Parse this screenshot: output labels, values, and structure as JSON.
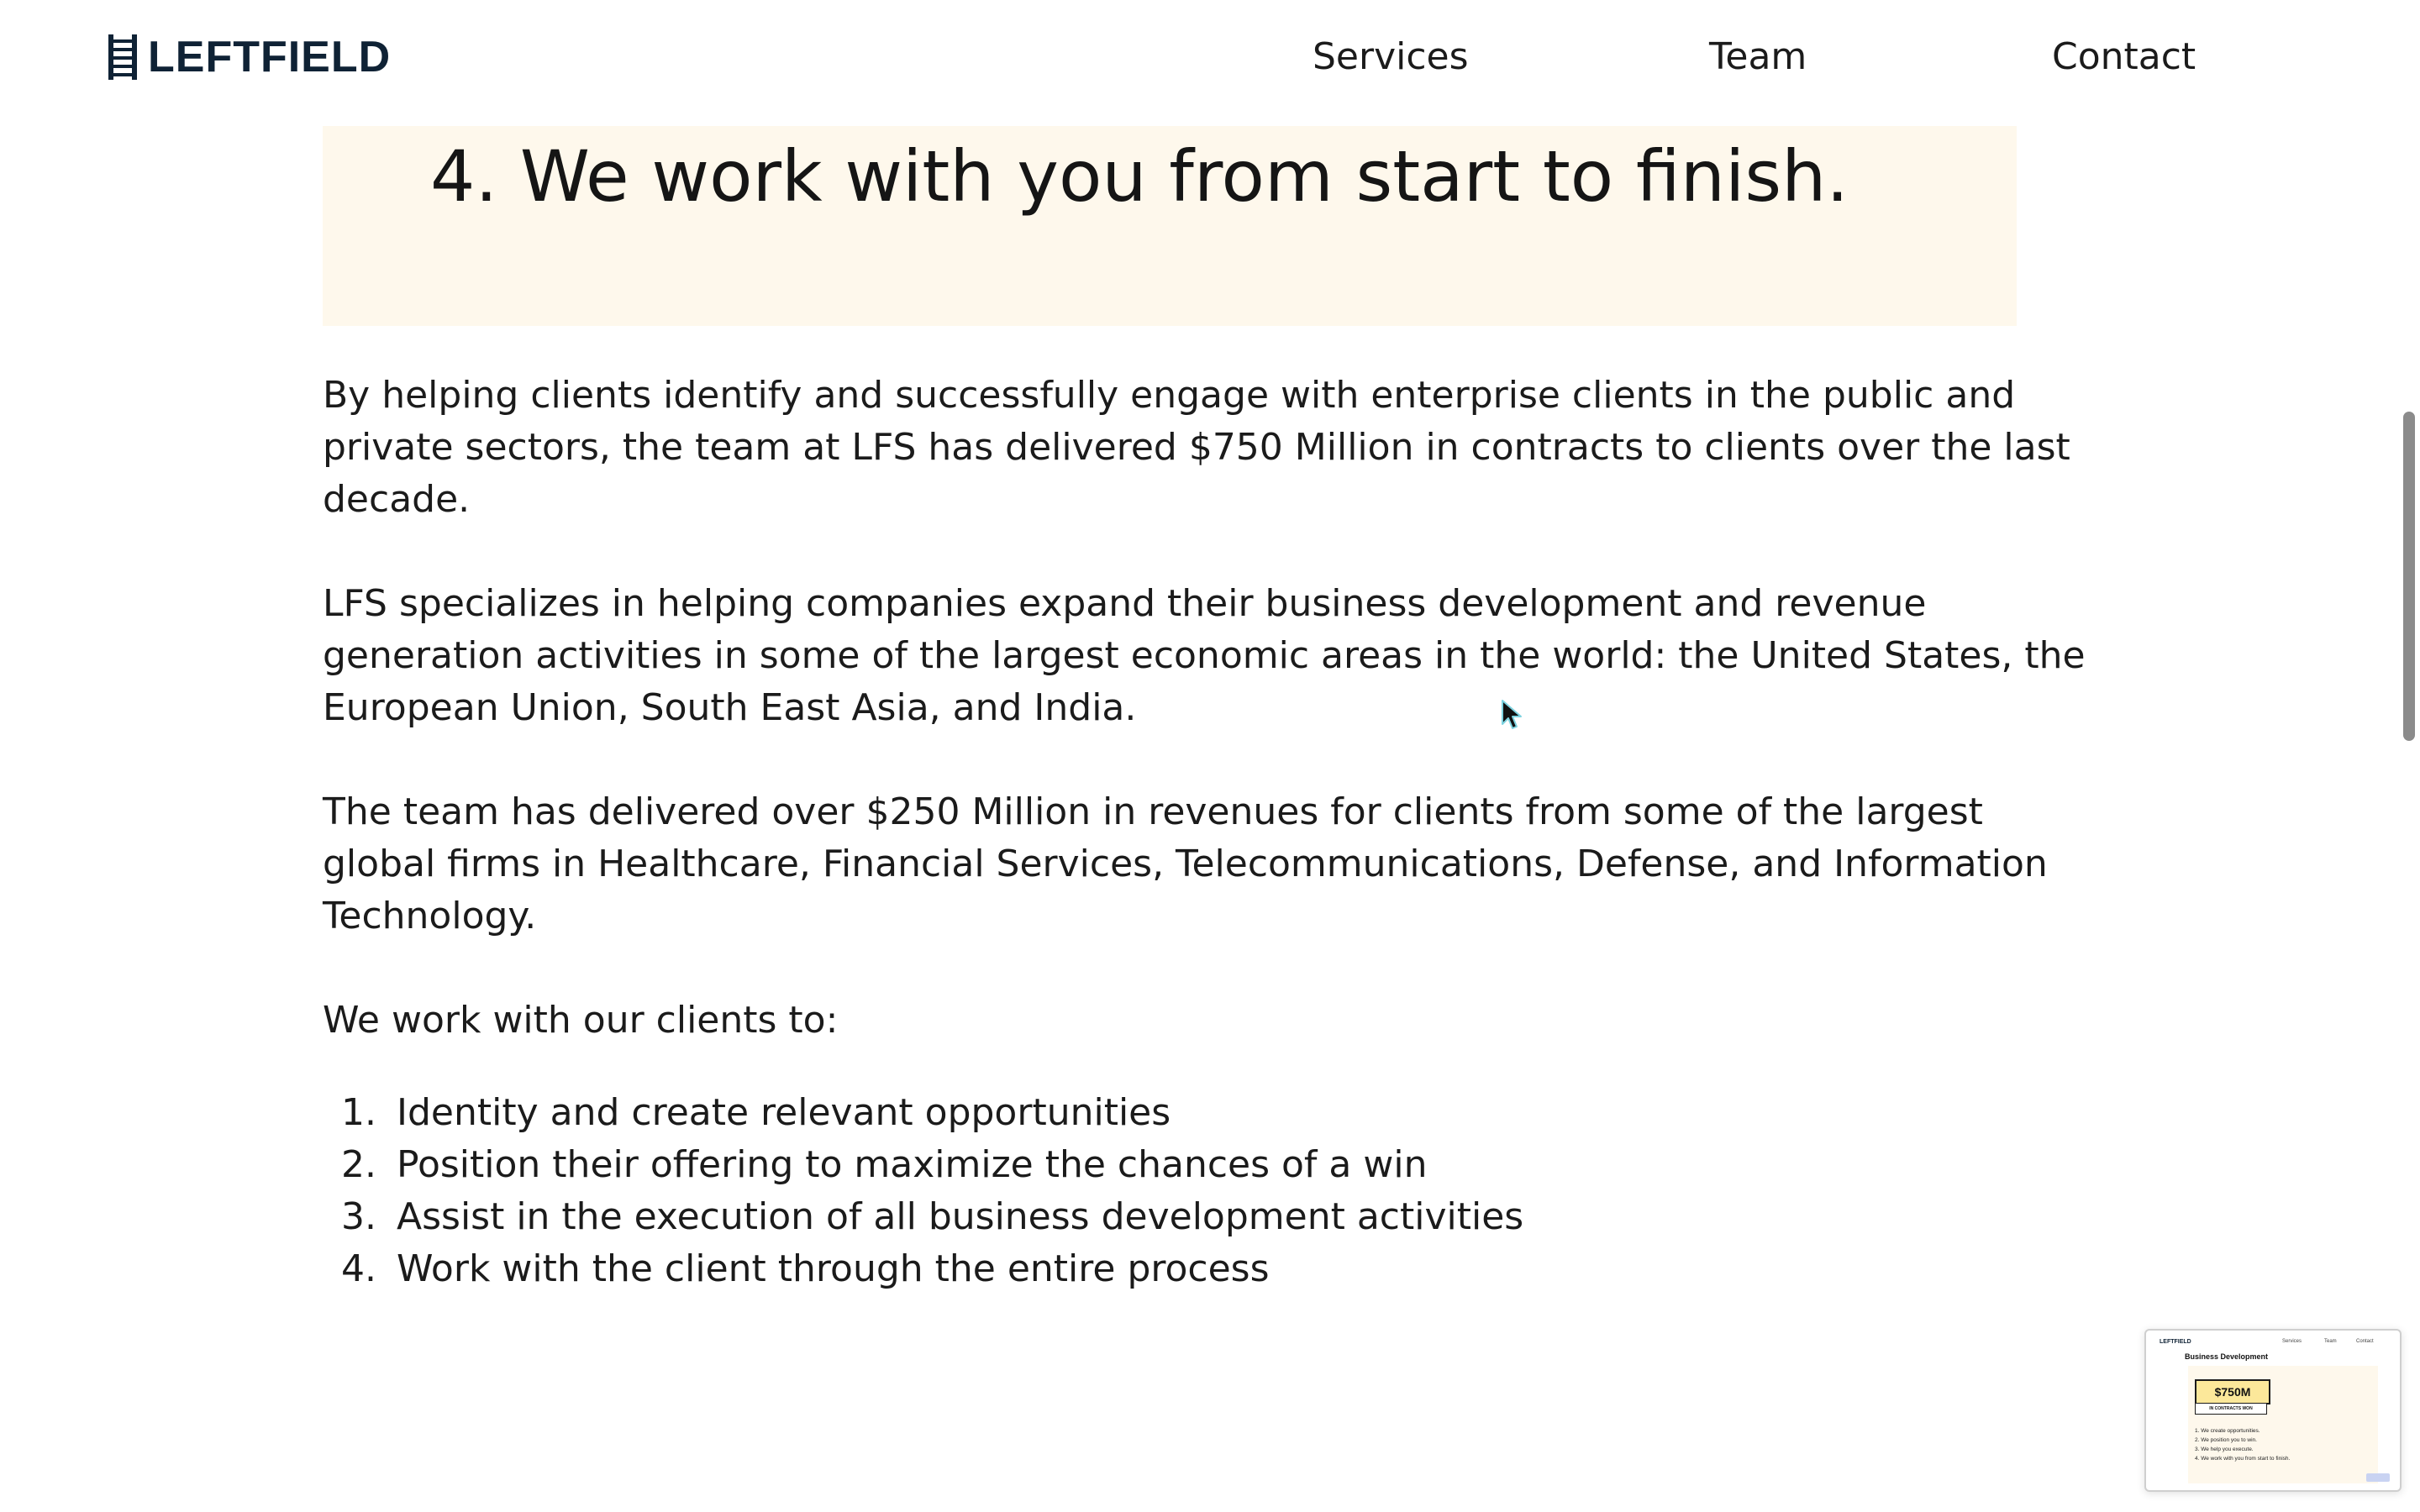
{
  "header": {
    "logo_text": "LEFTFIELD",
    "nav": [
      "Services",
      "Team",
      "Contact"
    ]
  },
  "highlight": {
    "heading": "4. We work with you from start to finish."
  },
  "body": {
    "paragraphs": [
      "By helping clients identify and successfully engage with enterprise clients in the public and private sectors, the team at LFS has delivered $750 Million in contracts to clients over the last decade.",
      "LFS specializes in helping companies expand their business development and revenue generation activities in some of the largest economic areas in the world: the United States, the European Union, South East Asia, and India.",
      "The team has delivered over $250 Million in revenues for clients from some of the largest global firms in Healthcare, Financial Services, Telecommunications, Defense, and Information Technology."
    ],
    "intro": "We work with our clients to:",
    "steps": [
      {
        "num": "1.",
        "text": "Identity and create relevant opportunities"
      },
      {
        "num": "2.",
        "text": "Position their offering to maximize the chances of a win"
      },
      {
        "num": "3.",
        "text": "Assist in the execution of all business development activities"
      },
      {
        "num": "4.",
        "text": "Work with the client through the entire process"
      }
    ]
  },
  "thumbnail": {
    "logo": "LEFTFIELD",
    "nav": [
      "Services",
      "Team",
      "Contact"
    ],
    "title": "Business Development",
    "badge": "$750M",
    "badge_sub": "IN CONTRACTS WON",
    "list": [
      "1. We create opportunities.",
      "2. We position you to win.",
      "3. We help you execute.",
      "4. We work with you from start to finish."
    ]
  },
  "colors": {
    "brand_navy": "#0f2235",
    "cream_panel": "#fef8ec",
    "text": "#1b1b1b",
    "badge_yellow": "#fce89a"
  },
  "icons": {
    "logo_mark": "ladder-icon",
    "cursor": "mouse-pointer-icon"
  }
}
